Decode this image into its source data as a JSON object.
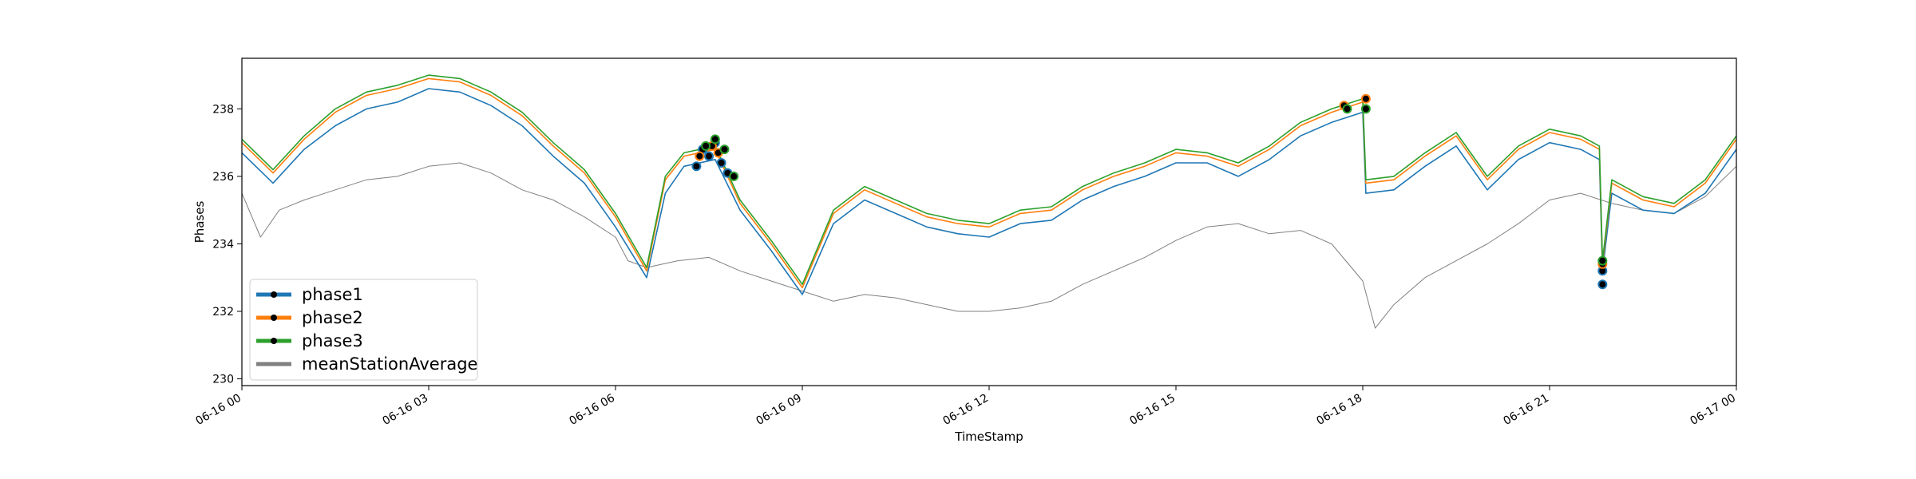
{
  "chart_data": {
    "type": "line",
    "xlabel": "TimeStamp",
    "ylabel": "Phases",
    "xlim": [
      "06-16 00",
      "06-17 00"
    ],
    "ylim": [
      229.8,
      239.5
    ],
    "yticks": [
      230,
      232,
      234,
      236,
      238
    ],
    "xticks": [
      "06-16 00",
      "06-16 03",
      "06-16 06",
      "06-16 09",
      "06-16 12",
      "06-16 15",
      "06-16 18",
      "06-16 21",
      "06-17 00"
    ],
    "grid": false,
    "legend_position": "lower-left",
    "series": [
      {
        "name": "phase1",
        "color": "#1f77b4",
        "marker": "circle",
        "x": [
          0,
          0.5,
          1,
          1.5,
          2,
          2.5,
          3,
          3.5,
          4,
          4.5,
          5,
          5.5,
          6,
          6.5,
          6.8,
          7.1,
          7.6,
          8,
          8.5,
          9,
          9.5,
          10,
          10.5,
          11,
          11.5,
          12,
          12.5,
          13,
          13.5,
          14,
          14.5,
          15,
          15.5,
          16,
          16.5,
          17,
          17.5,
          18,
          18.05,
          18.5,
          19,
          19.5,
          20,
          20.5,
          21,
          21.5,
          21.8,
          21.85,
          22,
          22.5,
          23,
          23.5,
          24
        ],
        "y": [
          236.7,
          235.8,
          236.8,
          237.5,
          238.0,
          238.2,
          238.6,
          238.5,
          238.1,
          237.5,
          236.6,
          235.8,
          234.5,
          233.0,
          235.5,
          236.3,
          236.5,
          235.0,
          233.8,
          232.5,
          234.6,
          235.3,
          234.9,
          234.5,
          234.3,
          234.2,
          234.6,
          234.7,
          235.3,
          235.7,
          236.0,
          236.4,
          236.4,
          236.0,
          236.5,
          237.2,
          237.6,
          237.9,
          235.5,
          235.6,
          236.3,
          236.9,
          235.6,
          236.5,
          237.0,
          236.8,
          236.5,
          233.2,
          235.5,
          235.0,
          234.9,
          235.5,
          236.8
        ]
      },
      {
        "name": "phase2",
        "color": "#ff7f0e",
        "marker": "circle",
        "x": [
          0,
          0.5,
          1,
          1.5,
          2,
          2.5,
          3,
          3.5,
          4,
          4.5,
          5,
          5.5,
          6,
          6.5,
          6.8,
          7.1,
          7.6,
          8,
          8.5,
          9,
          9.5,
          10,
          10.5,
          11,
          11.5,
          12,
          12.5,
          13,
          13.5,
          14,
          14.5,
          15,
          15.5,
          16,
          16.5,
          17,
          17.5,
          18,
          18.05,
          18.5,
          19,
          19.5,
          20,
          20.5,
          21,
          21.5,
          21.8,
          21.85,
          22,
          22.5,
          23,
          23.5,
          24
        ],
        "y": [
          237.0,
          236.1,
          237.1,
          237.9,
          238.4,
          238.6,
          238.9,
          238.8,
          238.4,
          237.8,
          236.9,
          236.1,
          234.8,
          233.2,
          235.9,
          236.6,
          236.8,
          235.2,
          234.0,
          232.7,
          234.9,
          235.6,
          235.2,
          234.8,
          234.6,
          234.5,
          234.9,
          235.0,
          235.6,
          236.0,
          236.3,
          236.7,
          236.6,
          236.3,
          236.8,
          237.5,
          237.9,
          238.2,
          235.8,
          235.9,
          236.6,
          237.2,
          235.9,
          236.8,
          237.3,
          237.1,
          236.8,
          233.4,
          235.8,
          235.3,
          235.1,
          235.8,
          237.1
        ]
      },
      {
        "name": "phase3",
        "color": "#2ca02c",
        "marker": "circle",
        "x": [
          0,
          0.5,
          1,
          1.5,
          2,
          2.5,
          3,
          3.5,
          4,
          4.5,
          5,
          5.5,
          6,
          6.5,
          6.8,
          7.1,
          7.6,
          8,
          8.5,
          9,
          9.5,
          10,
          10.5,
          11,
          11.5,
          12,
          12.5,
          13,
          13.5,
          14,
          14.5,
          15,
          15.5,
          16,
          16.5,
          17,
          17.5,
          18,
          18.05,
          18.5,
          19,
          19.5,
          20,
          20.5,
          21,
          21.5,
          21.8,
          21.85,
          22,
          22.5,
          23,
          23.5,
          24
        ],
        "y": [
          237.1,
          236.2,
          237.2,
          238.0,
          238.5,
          238.7,
          239.0,
          238.9,
          238.5,
          237.9,
          237.0,
          236.2,
          234.9,
          233.3,
          236.0,
          236.7,
          236.9,
          235.3,
          234.1,
          232.8,
          235.0,
          235.7,
          235.3,
          234.9,
          234.7,
          234.6,
          235.0,
          235.1,
          235.7,
          236.1,
          236.4,
          236.8,
          236.7,
          236.4,
          236.9,
          237.6,
          238.0,
          238.3,
          235.9,
          236.0,
          236.7,
          237.3,
          236.0,
          236.9,
          237.4,
          237.2,
          236.9,
          233.5,
          235.9,
          235.4,
          235.2,
          235.9,
          237.2
        ]
      },
      {
        "name": "meanStationAverage",
        "color": "#808080",
        "x": [
          0,
          0.3,
          0.6,
          1,
          1.5,
          2,
          2.5,
          3,
          3.5,
          4,
          4.5,
          5,
          5.5,
          6,
          6.2,
          6.5,
          7,
          7.5,
          8,
          8.5,
          9,
          9.5,
          10,
          10.5,
          11,
          11.5,
          12,
          12.5,
          13,
          13.5,
          14,
          14.5,
          15,
          15.5,
          16,
          16.5,
          17,
          17.5,
          18,
          18.2,
          18.5,
          19,
          19.5,
          20,
          20.5,
          21,
          21.5,
          22,
          22.5,
          23,
          23.5,
          24
        ],
        "y": [
          235.5,
          234.2,
          235.0,
          235.3,
          235.6,
          235.9,
          236.0,
          236.3,
          236.4,
          236.1,
          235.6,
          235.3,
          234.8,
          234.2,
          233.5,
          233.3,
          233.5,
          233.6,
          233.2,
          232.9,
          232.6,
          232.3,
          232.5,
          232.4,
          232.2,
          232.0,
          232.0,
          232.1,
          232.3,
          232.8,
          233.2,
          233.6,
          234.1,
          234.5,
          234.6,
          234.3,
          234.4,
          234.0,
          232.9,
          231.5,
          232.2,
          233.0,
          233.5,
          234.0,
          234.6,
          235.3,
          235.5,
          235.2,
          235.0,
          234.9,
          235.4,
          236.3
        ]
      }
    ],
    "highlighted_points": [
      {
        "series": "phase1",
        "x": [
          7.3,
          7.5,
          7.7,
          7.6,
          7.4,
          7.8,
          21.85,
          21.85
        ],
        "y": [
          236.3,
          236.6,
          236.4,
          237.0,
          236.8,
          236.1,
          233.2,
          232.8
        ]
      },
      {
        "series": "phase2",
        "x": [
          7.35,
          7.55,
          7.65,
          17.7,
          18.05,
          21.85
        ],
        "y": [
          236.6,
          236.9,
          236.7,
          238.1,
          238.3,
          233.4
        ]
      },
      {
        "series": "phase3",
        "x": [
          7.45,
          7.6,
          7.75,
          7.9,
          17.75,
          18.05,
          21.85
        ],
        "y": [
          236.9,
          237.1,
          236.8,
          236.0,
          238.0,
          238.0,
          233.5
        ]
      }
    ]
  }
}
